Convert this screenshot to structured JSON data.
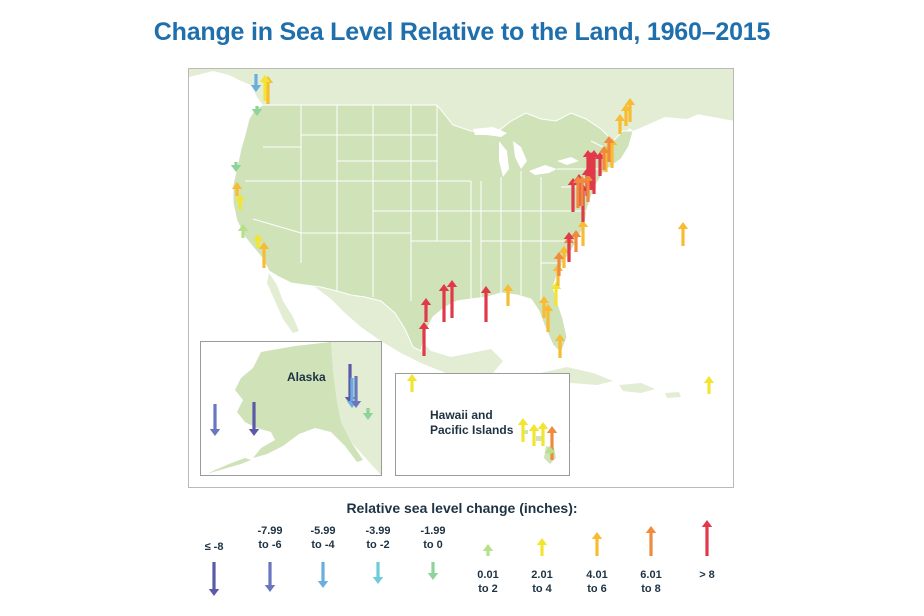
{
  "title": "Change in Sea Level Relative to the Land, 1960–2015",
  "colors": {
    "land": "#cfe2b8",
    "land_light": "#e2edd4",
    "border": "#ffffff",
    "le_neg8": "#5b5aa6",
    "neg8_neg6": "#6a76bd",
    "neg6_neg4": "#6aaee0",
    "neg4_neg2": "#6cccd8",
    "neg2_0": "#8ed39a",
    "p0_2": "#b8e08a",
    "p2_4": "#f2e531",
    "p4_6": "#f7bc33",
    "p6_8": "#ef8a3e",
    "gt8": "#e1394a"
  },
  "insets": {
    "alaska_label": "Alaska",
    "hawaii_label": "Hawaii and\nPacific Islands"
  },
  "legend": {
    "title": "Relative sea level change (inches):",
    "items": [
      {
        "label": "≤ -8",
        "category": "le_neg8",
        "direction": "down"
      },
      {
        "label": "-7.99\nto -6",
        "category": "neg8_neg6",
        "direction": "down"
      },
      {
        "label": "-5.99\nto -4",
        "category": "neg6_neg4",
        "direction": "down"
      },
      {
        "label": "-3.99\nto -2",
        "category": "neg4_neg2",
        "direction": "down"
      },
      {
        "label": "-1.99\nto 0",
        "category": "neg2_0",
        "direction": "down"
      },
      {
        "label": "0.01\nto 2",
        "category": "p0_2",
        "direction": "up"
      },
      {
        "label": "2.01\nto 4",
        "category": "p2_4",
        "direction": "up"
      },
      {
        "label": "4.01\nto 6",
        "category": "p4_6",
        "direction": "up"
      },
      {
        "label": "6.01\nto 8",
        "category": "p6_8",
        "direction": "up"
      },
      {
        "label": "> 8",
        "category": "gt8",
        "direction": "up"
      }
    ]
  },
  "stations": [
    {
      "region": "west-coast",
      "category": "p4_6",
      "direction": "up"
    },
    {
      "region": "west-coast",
      "category": "p2_4",
      "direction": "up"
    },
    {
      "region": "west-coast",
      "category": "neg6_neg4",
      "direction": "down"
    },
    {
      "region": "west-coast",
      "category": "neg2_0",
      "direction": "down"
    },
    {
      "region": "west-coast",
      "category": "neg2_0",
      "direction": "down"
    },
    {
      "region": "west-coast",
      "category": "p4_6",
      "direction": "up"
    },
    {
      "region": "west-coast",
      "category": "p2_4",
      "direction": "up"
    },
    {
      "region": "west-coast",
      "category": "p0_2",
      "direction": "up"
    },
    {
      "region": "west-coast",
      "category": "p2_4",
      "direction": "up"
    },
    {
      "region": "west-coast",
      "category": "p4_6",
      "direction": "up"
    },
    {
      "region": "gulf-coast",
      "category": "gt8",
      "direction": "up"
    },
    {
      "region": "gulf-coast",
      "category": "gt8",
      "direction": "up"
    },
    {
      "region": "gulf-coast",
      "category": "gt8",
      "direction": "up"
    },
    {
      "region": "gulf-coast",
      "category": "gt8",
      "direction": "up"
    },
    {
      "region": "gulf-coast",
      "category": "gt8",
      "direction": "up"
    },
    {
      "region": "gulf-coast",
      "category": "p4_6",
      "direction": "up"
    },
    {
      "region": "gulf-coast",
      "category": "p4_6",
      "direction": "up"
    },
    {
      "region": "gulf-coast",
      "category": "p4_6",
      "direction": "up"
    },
    {
      "region": "gulf-coast",
      "category": "p4_6",
      "direction": "up"
    },
    {
      "region": "east-coast",
      "category": "p2_4",
      "direction": "up"
    },
    {
      "region": "east-coast",
      "category": "p4_6",
      "direction": "up"
    },
    {
      "region": "east-coast",
      "category": "p4_6",
      "direction": "up"
    },
    {
      "region": "east-coast",
      "category": "p6_8",
      "direction": "up"
    },
    {
      "region": "east-coast",
      "category": "p6_8",
      "direction": "up"
    },
    {
      "region": "east-coast",
      "category": "p6_8",
      "direction": "up"
    },
    {
      "region": "east-coast",
      "category": "p4_6",
      "direction": "up"
    },
    {
      "region": "east-coast",
      "category": "gt8",
      "direction": "up"
    },
    {
      "region": "east-coast",
      "category": "gt8",
      "direction": "up"
    },
    {
      "region": "east-coast",
      "category": "gt8",
      "direction": "up"
    },
    {
      "region": "east-coast",
      "category": "gt8",
      "direction": "up"
    },
    {
      "region": "east-coast",
      "category": "gt8",
      "direction": "up"
    },
    {
      "region": "east-coast",
      "category": "gt8",
      "direction": "up"
    },
    {
      "region": "east-coast",
      "category": "p6_8",
      "direction": "up"
    },
    {
      "region": "east-coast",
      "category": "p6_8",
      "direction": "up"
    },
    {
      "region": "east-coast",
      "category": "p6_8",
      "direction": "up"
    },
    {
      "region": "east-coast",
      "category": "gt8",
      "direction": "up"
    },
    {
      "region": "east-coast",
      "category": "gt8",
      "direction": "up"
    },
    {
      "region": "east-coast",
      "category": "gt8",
      "direction": "up"
    },
    {
      "region": "east-coast",
      "category": "p4_6",
      "direction": "up"
    },
    {
      "region": "east-coast",
      "category": "p4_6",
      "direction": "up"
    },
    {
      "region": "east-coast",
      "category": "p6_8",
      "direction": "up"
    },
    {
      "region": "east-coast",
      "category": "p6_8",
      "direction": "up"
    },
    {
      "region": "east-coast",
      "category": "p4_6",
      "direction": "up"
    },
    {
      "region": "east-coast",
      "category": "p4_6",
      "direction": "up"
    },
    {
      "region": "east-coast",
      "category": "p4_6",
      "direction": "up"
    },
    {
      "region": "atlantic",
      "category": "p4_6",
      "direction": "up"
    },
    {
      "region": "caribbean",
      "category": "p2_4",
      "direction": "up"
    },
    {
      "region": "alaska",
      "category": "neg8_neg6",
      "direction": "down"
    },
    {
      "region": "alaska",
      "category": "le_neg8",
      "direction": "down"
    },
    {
      "region": "alaska",
      "category": "le_neg8",
      "direction": "down"
    },
    {
      "region": "alaska",
      "category": "neg6_neg4",
      "direction": "down"
    },
    {
      "region": "alaska",
      "category": "neg8_neg6",
      "direction": "down"
    },
    {
      "region": "alaska",
      "category": "neg2_0",
      "direction": "down"
    },
    {
      "region": "hawaii",
      "category": "p2_4",
      "direction": "up"
    },
    {
      "region": "hawaii",
      "category": "p2_4",
      "direction": "up"
    },
    {
      "region": "hawaii",
      "category": "p2_4",
      "direction": "up"
    },
    {
      "region": "hawaii",
      "category": "p2_4",
      "direction": "up"
    },
    {
      "region": "hawaii",
      "category": "p6_8",
      "direction": "up"
    },
    {
      "region": "hawaii",
      "category": "p0_2",
      "direction": "up"
    }
  ]
}
